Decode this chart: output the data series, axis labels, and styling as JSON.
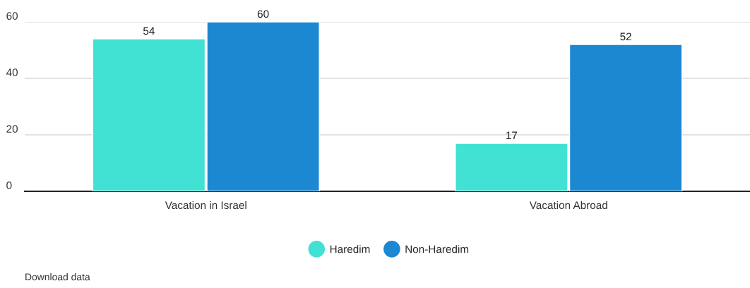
{
  "chart_data": {
    "type": "bar",
    "categories": [
      "Vacation in Israel",
      "Vacation Abroad"
    ],
    "series": [
      {
        "name": "Haredim",
        "color": "#41e2d4",
        "values": [
          54,
          17
        ]
      },
      {
        "name": "Non-Haredim",
        "color": "#1b88d1",
        "values": [
          60,
          52
        ]
      }
    ],
    "ylim": [
      0,
      60
    ],
    "yticks": [
      0,
      20,
      40,
      60
    ],
    "grid": "y",
    "data_labels": true,
    "legend": "bottom",
    "marker": "circle",
    "annotations": [
      "Download data"
    ]
  }
}
